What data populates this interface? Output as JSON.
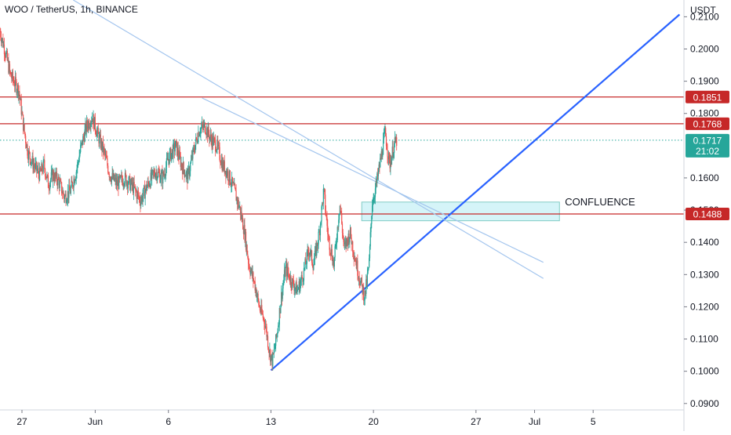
{
  "header": {
    "symbol_title": "WOO / TetherUS, 1h, BINANCE",
    "currency": "USDT"
  },
  "chart_data": {
    "type": "candlestick",
    "title": "WOO / TetherUS, 1h, BINANCE",
    "ylabel": "USDT",
    "ylim": [
      0.088,
      0.2152
    ],
    "y_ticks": [
      0.21,
      0.2,
      0.19,
      0.18,
      0.16,
      0.15,
      0.14,
      0.13,
      0.12,
      0.11,
      0.1,
      0.09
    ],
    "y_tick_labels": [
      "0.2100",
      "0.2000",
      "0.1900",
      "0.1800",
      "0.1600",
      "0.1500",
      "0.1400",
      "0.1300",
      "0.1200",
      "0.1100",
      "0.1000",
      "0.0900"
    ],
    "x_ticks": [
      "27",
      "Jun",
      "6",
      "13",
      "20",
      "27",
      "Jul",
      "5"
    ],
    "xlim_days": [
      -5.5,
      41.2
    ],
    "x_tick_days": [
      -4,
      1,
      6,
      13,
      20,
      27,
      31,
      35
    ],
    "grid": false,
    "levels": [
      {
        "label": "0.1851",
        "price": 0.1851,
        "color": "#c62828"
      },
      {
        "label": "0.1768",
        "price": 0.1768,
        "color": "#c62828"
      },
      {
        "label": "0.1488",
        "price": 0.1488,
        "color": "#c62828"
      }
    ],
    "last_price": {
      "label": "0.1717",
      "countdown": "21:02",
      "price": 0.1717,
      "color": "#26a69a"
    },
    "trendlines": [
      {
        "name": "support",
        "color": "#2962ff",
        "from": [
          13.0,
          0.1003
        ],
        "to": [
          40.9,
          0.2107
        ]
      },
      {
        "name": "resistance-a",
        "color": "#a3c5ee",
        "from": [
          -0.5,
          0.2152
        ],
        "to": [
          31.6,
          0.1288
        ]
      },
      {
        "name": "resistance-b",
        "color": "#a3c5ee",
        "from": [
          8.3,
          0.1848
        ],
        "to": [
          31.6,
          0.1338
        ]
      }
    ],
    "zone": {
      "label": "CONFLUENCE",
      "from_day": 19.2,
      "to_day": 32.7,
      "price_top": 0.1525,
      "price_bottom": 0.1467,
      "color": "#b2ebf2"
    },
    "ohlc_anchors": [
      [
        -5.5,
        0.2055
      ],
      [
        -5.1,
        0.1985
      ],
      [
        -4.8,
        0.192
      ],
      [
        -4.5,
        0.1895
      ],
      [
        -4.2,
        0.187
      ],
      [
        -3.9,
        0.176
      ],
      [
        -3.6,
        0.168
      ],
      [
        -3.2,
        0.164
      ],
      [
        -2.8,
        0.161
      ],
      [
        -2.5,
        0.164
      ],
      [
        -2.2,
        0.158
      ],
      [
        -1.9,
        0.161
      ],
      [
        -1.5,
        0.159
      ],
      [
        -1.1,
        0.154
      ],
      [
        -0.7,
        0.156
      ],
      [
        -0.3,
        0.162
      ],
      [
        0.0,
        0.169
      ],
      [
        0.4,
        0.176
      ],
      [
        0.8,
        0.179
      ],
      [
        1.2,
        0.173
      ],
      [
        1.6,
        0.168
      ],
      [
        2.0,
        0.161
      ],
      [
        2.5,
        0.158
      ],
      [
        3.0,
        0.16
      ],
      [
        3.6,
        0.157
      ],
      [
        4.1,
        0.153
      ],
      [
        4.6,
        0.158
      ],
      [
        5.1,
        0.162
      ],
      [
        5.6,
        0.16
      ],
      [
        6.0,
        0.166
      ],
      [
        6.5,
        0.17
      ],
      [
        6.9,
        0.164
      ],
      [
        7.3,
        0.16
      ],
      [
        7.7,
        0.168
      ],
      [
        8.1,
        0.175
      ],
      [
        8.5,
        0.176
      ],
      [
        8.9,
        0.172
      ],
      [
        9.3,
        0.17
      ],
      [
        9.7,
        0.164
      ],
      [
        10.1,
        0.161
      ],
      [
        10.5,
        0.156
      ],
      [
        10.9,
        0.15
      ],
      [
        11.2,
        0.143
      ],
      [
        11.5,
        0.133
      ],
      [
        11.9,
        0.127
      ],
      [
        12.2,
        0.12
      ],
      [
        12.6,
        0.115
      ],
      [
        12.9,
        0.106
      ],
      [
        13.1,
        0.103
      ],
      [
        13.4,
        0.111
      ],
      [
        13.7,
        0.123
      ],
      [
        14.0,
        0.132
      ],
      [
        14.4,
        0.128
      ],
      [
        14.8,
        0.125
      ],
      [
        15.2,
        0.13
      ],
      [
        15.6,
        0.138
      ],
      [
        15.9,
        0.133
      ],
      [
        16.3,
        0.143
      ],
      [
        16.6,
        0.156
      ],
      [
        16.9,
        0.142
      ],
      [
        17.3,
        0.133
      ],
      [
        17.7,
        0.152
      ],
      [
        18.0,
        0.138
      ],
      [
        18.4,
        0.143
      ],
      [
        18.7,
        0.136
      ],
      [
        19.1,
        0.128
      ],
      [
        19.4,
        0.123
      ],
      [
        19.7,
        0.133
      ],
      [
        19.9,
        0.152
      ],
      [
        20.2,
        0.158
      ],
      [
        20.5,
        0.166
      ],
      [
        20.8,
        0.174
      ],
      [
        21.1,
        0.164
      ],
      [
        21.4,
        0.17
      ],
      [
        21.6,
        0.1717
      ]
    ]
  }
}
